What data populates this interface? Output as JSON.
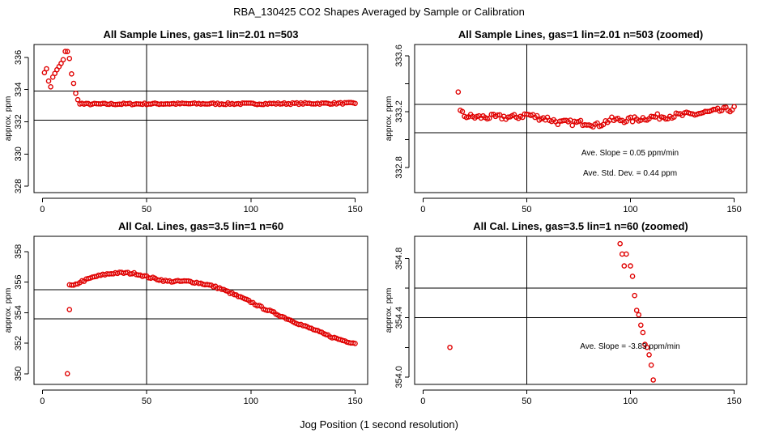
{
  "figure": {
    "title": "RBA_130425  CO2 Shapes Averaged by Sample or Calibration",
    "xlabel": "Jog Position (1 second resolution)",
    "point_color": "#e00000"
  },
  "chart_data": [
    {
      "type": "scatter",
      "title": "All Sample Lines, gas=1 lin=2.01 n=503",
      "xlabel": "",
      "ylabel": "approx. ppm",
      "xlim": [
        -4,
        156
      ],
      "ylim": [
        327.6,
        336.8
      ],
      "xticks": [
        0,
        50,
        100,
        150
      ],
      "yticks": [
        328,
        330,
        332,
        334,
        336
      ],
      "hlines": [
        333.9,
        332.1
      ],
      "vlines": [
        50
      ],
      "annotations": [],
      "x_range": [
        1,
        150
      ],
      "y_curve": [
        [
          1,
          335.1
        ],
        [
          2,
          335.25
        ],
        [
          3,
          334.55
        ],
        [
          4,
          334.2
        ],
        [
          5,
          334.75
        ],
        [
          6,
          335.0
        ],
        [
          7,
          335.25
        ],
        [
          8,
          335.4
        ],
        [
          9,
          335.6
        ],
        [
          10,
          335.85
        ],
        [
          11,
          336.35
        ],
        [
          12,
          336.35
        ],
        [
          13,
          335.9
        ],
        [
          14,
          335.0
        ],
        [
          15,
          334.4
        ],
        [
          16,
          333.75
        ],
        [
          17,
          333.35
        ],
        [
          18,
          333.15
        ],
        [
          20,
          333.1
        ],
        [
          30,
          333.1
        ],
        [
          60,
          333.12
        ],
        [
          100,
          333.12
        ],
        [
          150,
          333.15
        ]
      ],
      "y_jitter": 0.05
    },
    {
      "type": "scatter",
      "title": "All Sample Lines, gas=1 lin=2.01 n=503 (zoomed)",
      "xlabel": "",
      "ylabel": "approx. ppm",
      "xlim": [
        -4,
        156
      ],
      "ylim": [
        332.62,
        333.68
      ],
      "xticks": [
        0,
        50,
        100,
        150
      ],
      "yticks": [
        332.8,
        333.0,
        333.2,
        333.4,
        333.6
      ],
      "yticklabels": [
        "332.8",
        "",
        "333.2",
        "",
        "333.6"
      ],
      "hlines": [
        333.25,
        333.05
      ],
      "vlines": [
        50
      ],
      "annotations": [
        "Ave. Slope =  0.05  ppm/min",
        "Ave. Std. Dev. =  0.44  ppm"
      ],
      "x_range": [
        17,
        150
      ],
      "y_curve": [
        [
          17,
          333.35
        ],
        [
          18,
          333.2
        ],
        [
          20,
          333.17
        ],
        [
          25,
          333.16
        ],
        [
          35,
          333.16
        ],
        [
          45,
          333.16
        ],
        [
          50,
          333.18
        ],
        [
          55,
          333.16
        ],
        [
          60,
          333.15
        ],
        [
          66,
          333.12
        ],
        [
          70,
          333.12
        ],
        [
          80,
          333.12
        ],
        [
          84,
          333.1
        ],
        [
          90,
          333.14
        ],
        [
          100,
          333.14
        ],
        [
          110,
          333.16
        ],
        [
          120,
          333.17
        ],
        [
          130,
          333.18
        ],
        [
          140,
          333.2
        ],
        [
          150,
          333.22
        ]
      ],
      "y_jitter": 0.02
    },
    {
      "type": "scatter",
      "title": "All Cal. Lines, gas=3.5 lin=1 n=60",
      "xlabel": "",
      "ylabel": "approx. ppm",
      "xlim": [
        -4,
        156
      ],
      "ylim": [
        349.3,
        359.0
      ],
      "xticks": [
        0,
        50,
        100,
        150
      ],
      "yticks": [
        350,
        352,
        354,
        356,
        358
      ],
      "hlines": [
        355.5,
        353.6
      ],
      "vlines": [
        50
      ],
      "annotations": [],
      "x_range": [
        13,
        150
      ],
      "extra_points": [
        [
          12,
          350.0
        ],
        [
          13,
          354.2
        ]
      ],
      "y_curve": [
        [
          13,
          355.8
        ],
        [
          15,
          355.75
        ],
        [
          18,
          356.0
        ],
        [
          20,
          356.1
        ],
        [
          25,
          356.35
        ],
        [
          30,
          356.5
        ],
        [
          35,
          356.6
        ],
        [
          40,
          356.6
        ],
        [
          45,
          356.55
        ],
        [
          50,
          356.35
        ],
        [
          55,
          356.2
        ],
        [
          60,
          356.05
        ],
        [
          65,
          356.05
        ],
        [
          70,
          356.05
        ],
        [
          75,
          355.95
        ],
        [
          80,
          355.8
        ],
        [
          85,
          355.6
        ],
        [
          90,
          355.3
        ],
        [
          95,
          355.0
        ],
        [
          100,
          354.7
        ],
        [
          105,
          354.35
        ],
        [
          110,
          354.05
        ],
        [
          115,
          353.75
        ],
        [
          120,
          353.45
        ],
        [
          125,
          353.15
        ],
        [
          130,
          352.9
        ],
        [
          135,
          352.6
        ],
        [
          140,
          352.35
        ],
        [
          145,
          352.15
        ],
        [
          150,
          352.0
        ]
      ],
      "y_jitter": 0.06
    },
    {
      "type": "scatter",
      "title": "All Cal. Lines, gas=3.5 lin=1 n=60 (zoomed)",
      "xlabel": "",
      "ylabel": "approx. ppm",
      "xlim": [
        -4,
        156
      ],
      "ylim": [
        353.95,
        354.95
      ],
      "xticks": [
        0,
        50,
        100,
        150
      ],
      "yticks": [
        354.0,
        354.2,
        354.4,
        354.6,
        354.8
      ],
      "yticklabels": [
        "354.0",
        "",
        "354.4",
        "",
        "354.8"
      ],
      "hlines": [
        354.6,
        354.4
      ],
      "vlines": [
        50
      ],
      "annotations": [
        "Ave. Slope =  -3.83  ppm/min"
      ],
      "points": [
        [
          13,
          354.2
        ],
        [
          95,
          354.9
        ],
        [
          96,
          354.83
        ],
        [
          97,
          354.75
        ],
        [
          98,
          354.83
        ],
        [
          100,
          354.75
        ],
        [
          101,
          354.68
        ],
        [
          102,
          354.55
        ],
        [
          103,
          354.45
        ],
        [
          104,
          354.42
        ],
        [
          105,
          354.35
        ],
        [
          106,
          354.3
        ],
        [
          107,
          354.22
        ],
        [
          108,
          354.2
        ],
        [
          109,
          354.15
        ],
        [
          110,
          354.08
        ],
        [
          111,
          353.98
        ]
      ]
    }
  ]
}
